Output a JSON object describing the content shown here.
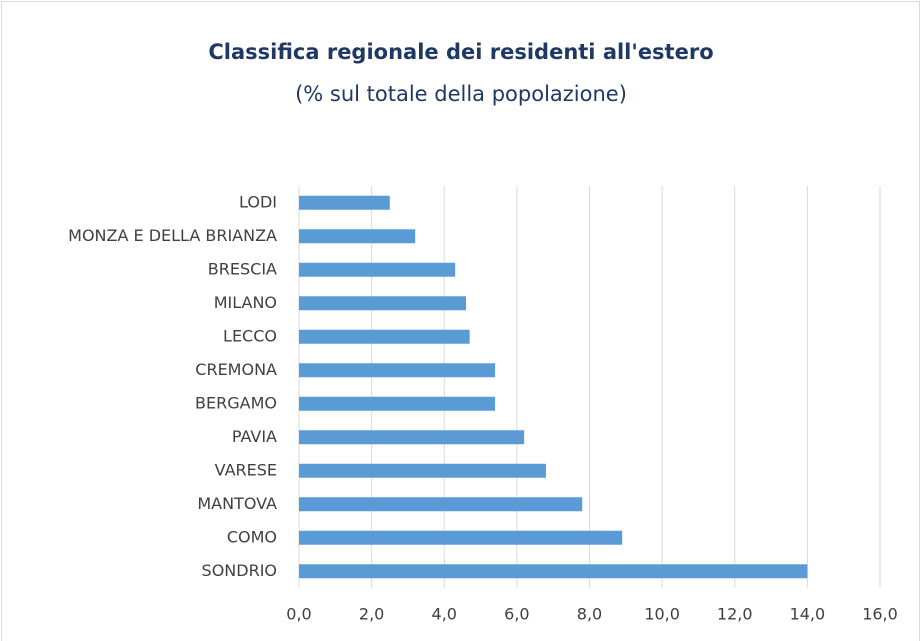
{
  "chart_data": {
    "type": "bar",
    "orientation": "horizontal",
    "title": "Classifica regionale dei residenti all'estero",
    "subtitle": "(% sul totale della popolazione)",
    "categories": [
      "LODI",
      "MONZA E DELLA BRIANZA",
      "BRESCIA",
      "MILANO",
      "LECCO",
      "CREMONA",
      "BERGAMO",
      "PAVIA",
      "VARESE",
      "MANTOVA",
      "COMO",
      "SONDRIO"
    ],
    "values": [
      2.5,
      3.2,
      4.3,
      4.6,
      4.7,
      5.4,
      5.4,
      6.2,
      6.8,
      7.8,
      8.9,
      14.0
    ],
    "color": "#5b9bd5",
    "xlim": [
      0,
      16
    ],
    "xticks": [
      {
        "value": 0,
        "label": "0,0"
      },
      {
        "value": 2,
        "label": "2,0"
      },
      {
        "value": 4,
        "label": "4,0"
      },
      {
        "value": 6,
        "label": "6,0"
      },
      {
        "value": 8,
        "label": "8,0"
      },
      {
        "value": 10,
        "label": "10,0"
      },
      {
        "value": 12,
        "label": "12,0"
      },
      {
        "value": 14,
        "label": "14,0"
      },
      {
        "value": 16,
        "label": "16,0"
      }
    ],
    "grid": true
  }
}
